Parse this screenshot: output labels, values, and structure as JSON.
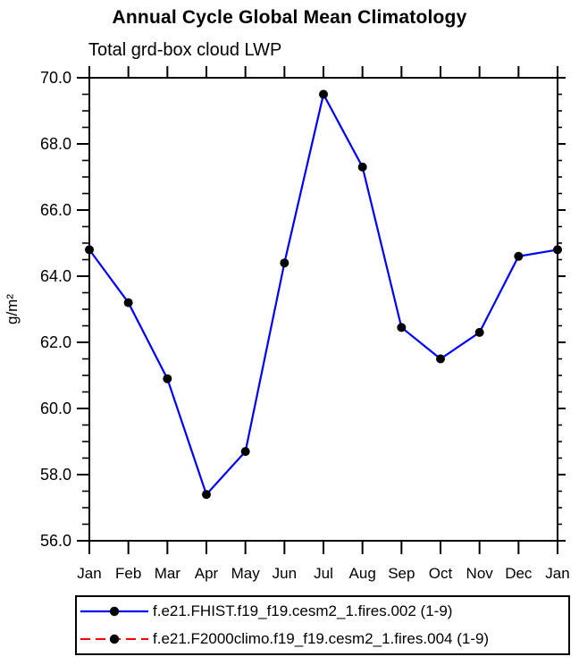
{
  "header": {
    "title": "Annual Cycle Global Mean Climatology",
    "subtitle": "Total grd-box cloud LWP"
  },
  "chart_data": {
    "type": "line",
    "title": "Annual Cycle Global Mean Climatology",
    "subtitle": "Total grd-box cloud LWP",
    "xlabel": "",
    "ylabel": "g/m²",
    "ylim": [
      56.0,
      70.0
    ],
    "y_major_step": 2.0,
    "y_minor_step": 0.5,
    "y_tick_labels": [
      "56.0",
      "58.0",
      "60.0",
      "62.0",
      "64.0",
      "66.0",
      "68.0",
      "70.0"
    ],
    "x_tick_labels": [
      "Jan",
      "Feb",
      "Mar",
      "Apr",
      "May",
      "Jun",
      "Jul",
      "Aug",
      "Sep",
      "Oct",
      "Nov",
      "Dec",
      "Jan"
    ],
    "grid": false,
    "legend_position": "bottom",
    "axis_color": "#000000",
    "marker": "circle",
    "marker_color": "#000000",
    "series": [
      {
        "name": "f.e21.FHIST.f19_f19.cesm2_1.fires.002 (1-9)",
        "color": "#0000ff",
        "line_style": "solid",
        "values": [
          64.8,
          63.2,
          60.9,
          57.4,
          58.7,
          64.4,
          69.5,
          67.3,
          62.45,
          61.5,
          62.3,
          64.6,
          64.8
        ]
      },
      {
        "name": "f.e21.F2000climo.f19_f19.cesm2_1.fires.004 (1-9)",
        "color": "#ff0000",
        "line_style": "dashed",
        "overlapped_by_series_1": true,
        "values": [
          64.8,
          63.2,
          60.9,
          57.4,
          58.7,
          64.4,
          69.5,
          67.3,
          62.45,
          61.5,
          62.3,
          64.6,
          64.8
        ]
      }
    ]
  }
}
